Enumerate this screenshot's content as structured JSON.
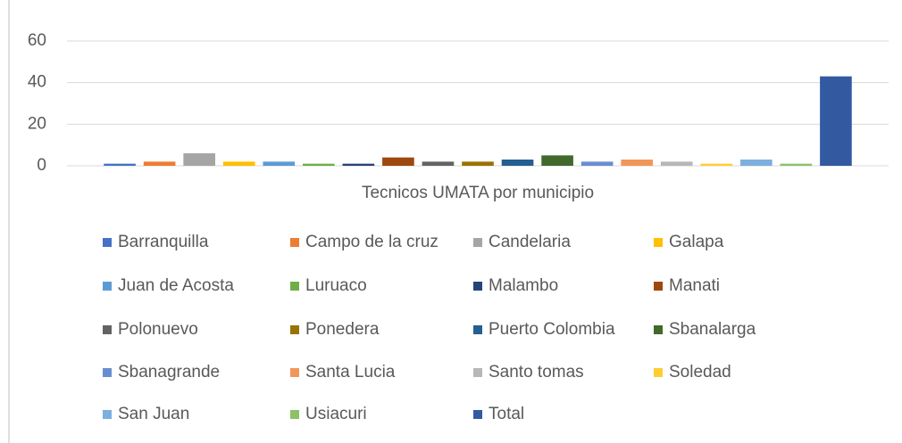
{
  "chart_data": {
    "type": "bar",
    "categories": [
      "Tecnicos UMATA por municipio"
    ],
    "ylim": [
      0,
      60
    ],
    "yticks": [
      0,
      20,
      40,
      60
    ],
    "grid": true,
    "series": [
      {
        "name": "Barranquilla",
        "color": "#4472c4",
        "values": [
          1
        ]
      },
      {
        "name": "Campo de la cruz",
        "color": "#ed7d31",
        "values": [
          2
        ]
      },
      {
        "name": "Candelaria",
        "color": "#a5a5a5",
        "values": [
          6
        ]
      },
      {
        "name": "Galapa",
        "color": "#ffc000",
        "values": [
          2
        ]
      },
      {
        "name": "Juan de Acosta",
        "color": "#5b9bd5",
        "values": [
          2
        ]
      },
      {
        "name": "Luruaco",
        "color": "#70ad47",
        "values": [
          1
        ]
      },
      {
        "name": "Malambo",
        "color": "#264478",
        "values": [
          1
        ]
      },
      {
        "name": "Manati",
        "color": "#9e480e",
        "values": [
          4
        ]
      },
      {
        "name": "Polonuevo",
        "color": "#636363",
        "values": [
          2
        ]
      },
      {
        "name": "Ponedera",
        "color": "#997300",
        "values": [
          2
        ]
      },
      {
        "name": "Puerto Colombia",
        "color": "#255e91",
        "values": [
          3
        ]
      },
      {
        "name": "Sbanalarga",
        "color": "#43682b",
        "values": [
          5
        ]
      },
      {
        "name": "Sbanagrande",
        "color": "#698ed0",
        "values": [
          2
        ]
      },
      {
        "name": "Santa Lucia",
        "color": "#f1975a",
        "values": [
          3
        ]
      },
      {
        "name": "Santo tomas",
        "color": "#b7b7b7",
        "values": [
          2
        ]
      },
      {
        "name": "Soledad",
        "color": "#ffcd33",
        "values": [
          1
        ]
      },
      {
        "name": "San Juan",
        "color": "#7cafdd",
        "values": [
          3
        ]
      },
      {
        "name": "Usiacuri",
        "color": "#8cc168",
        "values": [
          1
        ]
      },
      {
        "name": "Total",
        "color": "#335aa1",
        "values": [
          43
        ]
      }
    ]
  }
}
